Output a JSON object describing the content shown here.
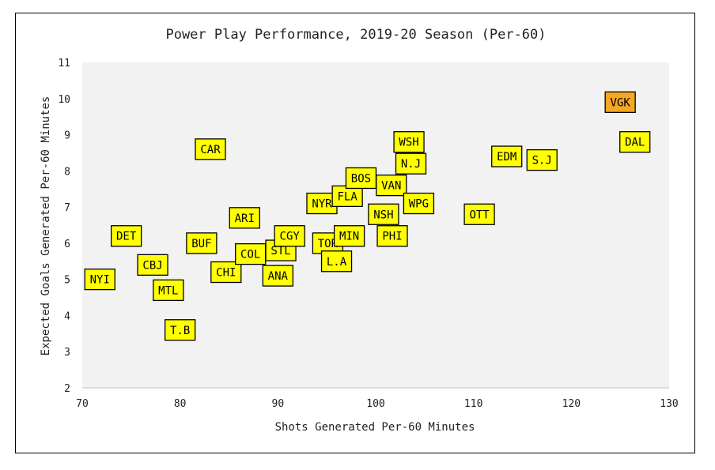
{
  "chart_data": {
    "type": "scatter",
    "title": "Power Play Performance, 2019-20 Season (Per-60)",
    "xlabel": "Shots Generated Per-60 Minutes",
    "ylabel": "Expected Goals Generated Per-60 Minutes",
    "xlim": [
      70,
      130
    ],
    "ylim": [
      2,
      11
    ],
    "xticks": [
      70,
      80,
      90,
      100,
      110,
      120,
      130
    ],
    "yticks": [
      2,
      3,
      4,
      5,
      6,
      7,
      8,
      9,
      10,
      11
    ],
    "grid": false,
    "plot_background": "#f2f2f2",
    "marker_color": "#ffff00",
    "highlight_color": "#f5a623",
    "points": [
      {
        "label": "NYI",
        "x": 71.8,
        "y": 5.0
      },
      {
        "label": "DET",
        "x": 74.5,
        "y": 6.2
      },
      {
        "label": "CBJ",
        "x": 77.2,
        "y": 5.4
      },
      {
        "label": "MTL",
        "x": 78.8,
        "y": 4.7
      },
      {
        "label": "T.B",
        "x": 80.0,
        "y": 3.6
      },
      {
        "label": "CAR",
        "x": 83.1,
        "y": 8.6
      },
      {
        "label": "BUF",
        "x": 82.2,
        "y": 6.0
      },
      {
        "label": "ARI",
        "x": 86.6,
        "y": 6.7
      },
      {
        "label": "CHI",
        "x": 84.7,
        "y": 5.2
      },
      {
        "label": "COL",
        "x": 87.2,
        "y": 5.7
      },
      {
        "label": "STL",
        "x": 90.3,
        "y": 5.8
      },
      {
        "label": "ANA",
        "x": 90.0,
        "y": 5.1
      },
      {
        "label": "CGY",
        "x": 91.2,
        "y": 6.2
      },
      {
        "label": "NYR",
        "x": 94.5,
        "y": 7.1
      },
      {
        "label": "TOR",
        "x": 95.1,
        "y": 6.0
      },
      {
        "label": "L.A",
        "x": 96.0,
        "y": 5.5
      },
      {
        "label": "MIN",
        "x": 97.3,
        "y": 6.2
      },
      {
        "label": "FLA",
        "x": 97.1,
        "y": 7.3
      },
      {
        "label": "BOS",
        "x": 98.5,
        "y": 7.8
      },
      {
        "label": "NSH",
        "x": 100.8,
        "y": 6.8
      },
      {
        "label": "PHI",
        "x": 101.7,
        "y": 6.2
      },
      {
        "label": "VAN",
        "x": 101.6,
        "y": 7.6
      },
      {
        "label": "WSH",
        "x": 103.4,
        "y": 8.8
      },
      {
        "label": "N.J",
        "x": 103.6,
        "y": 8.2
      },
      {
        "label": "WPG",
        "x": 104.4,
        "y": 7.1
      },
      {
        "label": "OTT",
        "x": 110.6,
        "y": 6.8
      },
      {
        "label": "EDM",
        "x": 113.4,
        "y": 8.4
      },
      {
        "label": "S.J",
        "x": 117.0,
        "y": 8.3
      },
      {
        "label": "VGK",
        "x": 125.0,
        "y": 9.9,
        "highlight": true
      },
      {
        "label": "DAL",
        "x": 126.5,
        "y": 8.8
      }
    ]
  }
}
